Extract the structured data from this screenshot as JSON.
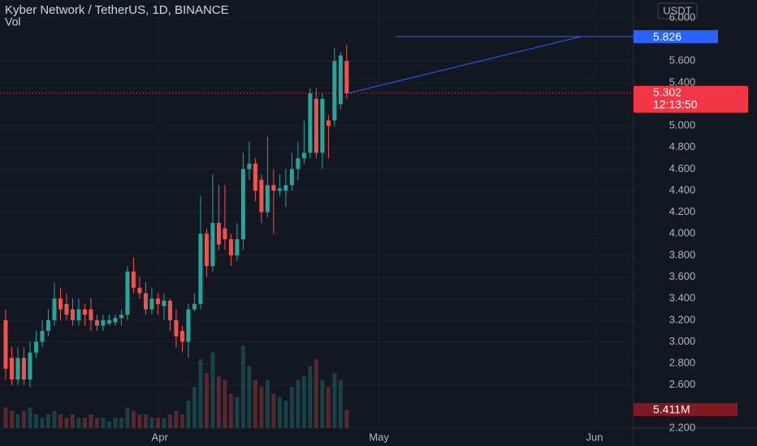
{
  "chart_data": {
    "type": "candlestick",
    "title": "Kyber Network / TetherUS, 1D, BINANCE",
    "subtitle": "Vol",
    "currency": "USDT",
    "open": [
      3.2,
      2.85,
      2.65,
      2.85,
      2.65,
      2.9,
      3.0,
      3.1,
      3.2,
      3.4,
      3.35,
      3.3,
      3.2,
      3.3,
      3.3,
      3.2,
      3.15,
      3.17,
      3.18,
      3.22,
      3.25,
      3.65,
      3.5,
      3.45,
      3.3,
      3.4,
      3.33,
      3.38,
      3.2,
      3.1,
      3.0,
      3.3,
      3.35,
      4.0,
      3.7,
      4.1,
      4.05,
      3.95,
      3.8,
      3.95,
      4.6,
      4.65,
      4.5,
      4.2,
      4.45,
      4.4,
      4.4,
      4.45,
      4.6,
      4.7,
      4.75,
      5.25,
      4.75,
      5.05,
      5.05,
      5.2,
      5.6
    ],
    "high": [
      3.3,
      2.95,
      2.95,
      2.95,
      3.0,
      3.1,
      3.2,
      3.3,
      3.55,
      3.5,
      3.45,
      3.4,
      3.4,
      3.35,
      3.4,
      3.25,
      3.25,
      3.25,
      3.25,
      3.3,
      3.7,
      3.78,
      3.6,
      3.55,
      3.5,
      3.45,
      3.45,
      3.4,
      3.3,
      3.15,
      3.35,
      3.45,
      4.35,
      4.05,
      4.55,
      4.45,
      4.45,
      4.0,
      4.1,
      4.75,
      4.85,
      4.7,
      4.55,
      4.9,
      4.6,
      4.55,
      4.6,
      4.75,
      4.85,
      5.05,
      5.35,
      5.35,
      5.3,
      5.1,
      5.72,
      5.68,
      5.75
    ],
    "low": [
      2.65,
      2.6,
      2.6,
      2.6,
      2.58,
      2.85,
      2.95,
      3.05,
      3.15,
      3.2,
      3.2,
      3.15,
      3.15,
      3.15,
      3.1,
      3.1,
      3.1,
      3.15,
      3.15,
      3.15,
      3.2,
      3.45,
      3.4,
      3.25,
      3.25,
      3.25,
      3.2,
      3.1,
      2.95,
      2.9,
      2.85,
      3.28,
      3.3,
      3.6,
      3.65,
      3.85,
      3.85,
      3.7,
      3.75,
      3.85,
      4.5,
      4.3,
      4.1,
      4.15,
      4.0,
      4.35,
      4.25,
      4.4,
      4.5,
      4.65,
      4.7,
      4.7,
      4.6,
      4.7,
      5.0,
      5.15,
      5.25
    ],
    "close": [
      2.75,
      2.65,
      2.85,
      2.65,
      2.9,
      3.0,
      3.1,
      3.2,
      3.4,
      3.3,
      3.25,
      3.2,
      3.3,
      3.25,
      3.2,
      3.15,
      3.2,
      3.2,
      3.22,
      3.25,
      3.65,
      3.5,
      3.45,
      3.3,
      3.4,
      3.35,
      3.38,
      3.2,
      3.05,
      3.0,
      3.3,
      3.35,
      4.0,
      3.7,
      4.1,
      3.9,
      3.95,
      3.8,
      3.95,
      4.6,
      4.65,
      4.4,
      4.2,
      4.45,
      4.4,
      4.42,
      4.45,
      4.6,
      4.7,
      4.75,
      5.3,
      4.75,
      5.25,
      5.0,
      5.6,
      5.65,
      5.302
    ],
    "volume": [
      6,
      5,
      4,
      5,
      6,
      4,
      3,
      4,
      5,
      4,
      3,
      4,
      3,
      3,
      4,
      3,
      3,
      2,
      3,
      3,
      6,
      5,
      4,
      4,
      3,
      3,
      3,
      4,
      5,
      4,
      8,
      12,
      20,
      16,
      22,
      15,
      14,
      10,
      9,
      24,
      18,
      14,
      12,
      14,
      10,
      9,
      8,
      12,
      14,
      15,
      18,
      20,
      14,
      12,
      16,
      14,
      5.411
    ],
    "last_price_label": "5.302",
    "last_volume_label": "5.411M",
    "countdown": "12:13:50",
    "target": {
      "value": 5.826,
      "label": "5.826"
    },
    "up_color": "#26a69a",
    "down_color": "#ef5350",
    "xlim": [
      -0.93,
      103.1
    ],
    "xticks": [
      {
        "value": 25.3,
        "label": "Apr"
      },
      {
        "value": 61.3,
        "label": "May"
      },
      {
        "value": 96.7,
        "label": "Jun"
      }
    ],
    "ylim": [
      2.2,
      6.165
    ],
    "yticks": [
      {
        "value": 6.0,
        "label": "6.000"
      },
      {
        "value": 5.6,
        "label": "5.600"
      },
      {
        "value": 5.4,
        "label": "5.400"
      },
      {
        "value": 5.0,
        "label": "5.000"
      },
      {
        "value": 4.8,
        "label": "4.800"
      },
      {
        "value": 4.6,
        "label": "4.600"
      },
      {
        "value": 4.4,
        "label": "4.400"
      },
      {
        "value": 4.2,
        "label": "4.200"
      },
      {
        "value": 4.0,
        "label": "4.000"
      },
      {
        "value": 3.8,
        "label": "3.800"
      },
      {
        "value": 3.6,
        "label": "3.600"
      },
      {
        "value": 3.4,
        "label": "3.400"
      },
      {
        "value": 3.2,
        "label": "3.200"
      },
      {
        "value": 3.0,
        "label": "3.000"
      },
      {
        "value": 2.8,
        "label": "2.800"
      },
      {
        "value": 2.6,
        "label": "2.600"
      },
      {
        "value": 2.2,
        "label": "2.200"
      }
    ],
    "grid": true
  }
}
